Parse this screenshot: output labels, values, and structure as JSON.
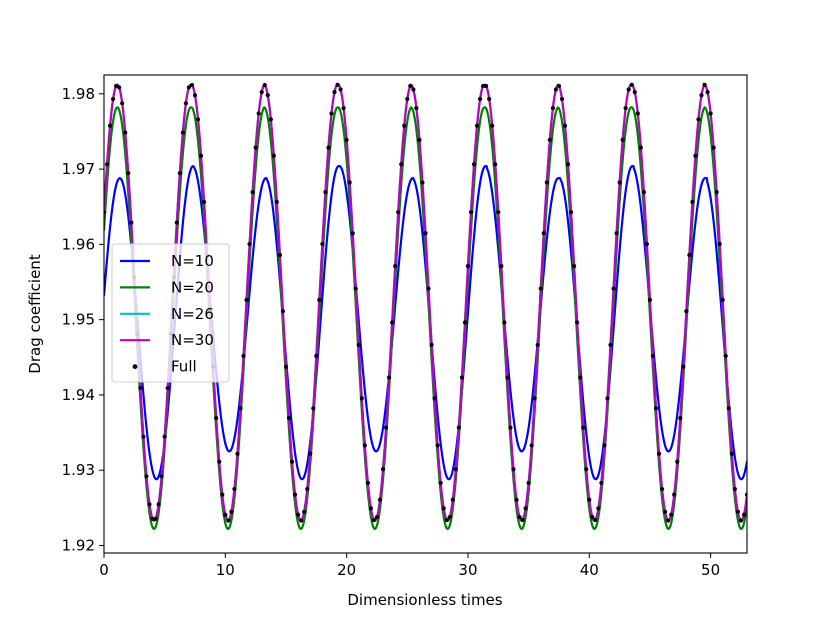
{
  "chart_data": {
    "type": "line",
    "title": "",
    "xlabel": "Dimensionless times",
    "ylabel": "Drag coefficient",
    "xlim": [
      0,
      53
    ],
    "ylim": [
      1.919,
      1.9825
    ],
    "xticks": [
      0,
      10,
      20,
      30,
      40,
      50
    ],
    "yticks": [
      1.92,
      1.93,
      1.94,
      1.95,
      1.96,
      1.97,
      1.98
    ],
    "xtick_labels": [
      "0",
      "10",
      "20",
      "30",
      "40",
      "50"
    ],
    "ytick_labels": [
      "1.92",
      "1.93",
      "1.94",
      "1.95",
      "1.96",
      "1.97",
      "1.98"
    ],
    "grid": false,
    "legend_position": "center-left",
    "period": 6.05,
    "series": [
      {
        "name": "N=10",
        "color": "#0000ff",
        "style": "line",
        "peak_x": [
          1.3,
          7.3,
          13.3,
          19.4,
          25.4,
          31.4,
          37.5,
          43.5,
          49.5
        ],
        "max": [
          1.9688,
          1.9704,
          1.9688,
          1.9704,
          1.9688,
          1.9704,
          1.9688,
          1.9704,
          1.9688
        ],
        "min": [
          1.9288,
          1.9325,
          1.9288,
          1.9325,
          1.9288,
          1.9325,
          1.9288,
          1.9325,
          1.9288
        ]
      },
      {
        "name": "N=20",
        "color": "#008000",
        "style": "line",
        "peak_x": [
          1.1,
          7.2,
          13.2,
          19.3,
          25.3,
          31.4,
          37.4,
          43.5,
          49.5
        ],
        "max": [
          1.9782,
          1.9782,
          1.9782,
          1.9782,
          1.9782,
          1.9782,
          1.9782,
          1.9782,
          1.9782
        ],
        "min": [
          1.9222,
          1.9222,
          1.9222,
          1.9222,
          1.9222,
          1.9222,
          1.9222,
          1.9222,
          1.9222
        ]
      },
      {
        "name": "N=26",
        "color": "#00bfbf",
        "style": "line",
        "peak_x": [
          1.1,
          7.2,
          13.2,
          19.3,
          25.3,
          31.4,
          37.4,
          43.5,
          49.5
        ],
        "max": [
          1.9812,
          1.9812,
          1.9812,
          1.9812,
          1.9812,
          1.9812,
          1.9812,
          1.9812,
          1.9812
        ],
        "min": [
          1.9233,
          1.9233,
          1.9233,
          1.9233,
          1.9233,
          1.9233,
          1.9233,
          1.9233,
          1.9233
        ]
      },
      {
        "name": "N=30",
        "color": "#bf00bf",
        "style": "line",
        "peak_x": [
          1.1,
          7.2,
          13.2,
          19.3,
          25.3,
          31.4,
          37.4,
          43.5,
          49.5
        ],
        "max": [
          1.9812,
          1.9812,
          1.9812,
          1.9812,
          1.9812,
          1.9812,
          1.9812,
          1.9812,
          1.9812
        ],
        "min": [
          1.9233,
          1.9233,
          1.9233,
          1.9233,
          1.9233,
          1.9233,
          1.9233,
          1.9233,
          1.9233
        ]
      },
      {
        "name": "Full",
        "color": "#000000",
        "style": "dots",
        "peak_x": [
          1.1,
          7.2,
          13.2,
          19.3,
          25.3,
          31.4,
          37.4,
          43.5,
          49.5
        ],
        "max": [
          1.9812,
          1.9812,
          1.9812,
          1.9812,
          1.9812,
          1.9812,
          1.9812,
          1.9812,
          1.9812
        ],
        "min": [
          1.9233,
          1.9233,
          1.9233,
          1.9233,
          1.9233,
          1.9233,
          1.9233,
          1.9233,
          1.9233
        ]
      }
    ]
  }
}
